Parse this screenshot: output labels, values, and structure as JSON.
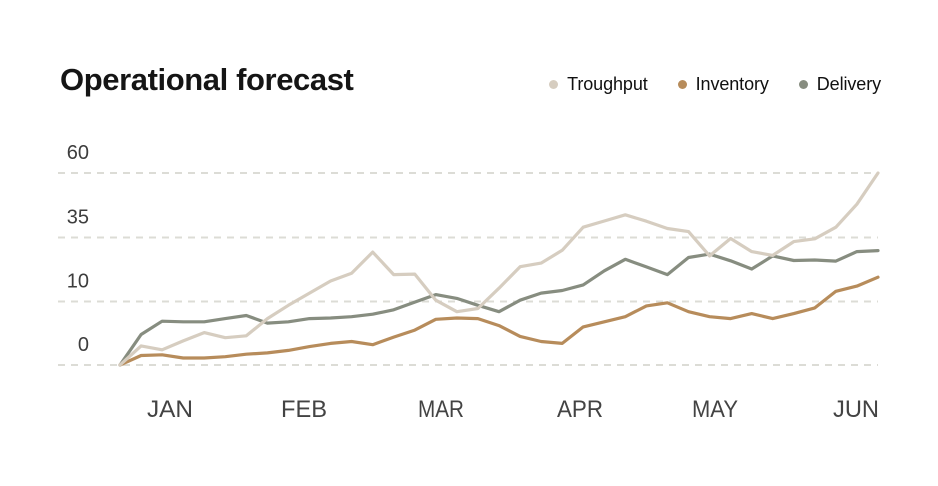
{
  "title": "Operational forecast",
  "legend": [
    {
      "label": "Troughput",
      "color": "#d6cdc0"
    },
    {
      "label": "Inventory",
      "color": "#b78c5b"
    },
    {
      "label": "Delivery",
      "color": "#878d80"
    }
  ],
  "colors": {
    "background": "#ffffff",
    "gridline": "#dcdcd6",
    "y_label": "#3d3d3d",
    "x_label": "#434343",
    "title": "#151515"
  },
  "chart_data": {
    "type": "line",
    "title": "Operational forecast",
    "x_categories": [
      "JAN",
      "FEB",
      "MAR",
      "APR",
      "MAY",
      "JUN"
    ],
    "y_ticks": [
      0,
      10,
      35,
      60
    ],
    "y_axis_note": "non-linear tick spacing, ticks equally spaced on screen",
    "grid": "horizontal-dashed",
    "legend_position": "top-right",
    "series": [
      {
        "name": "Troughput",
        "color": "#d6cdc0",
        "values": [
          0,
          3,
          2.4,
          3.8,
          5.1,
          4.3,
          4.6,
          7.3,
          9.4,
          13.3,
          18,
          21,
          29.3,
          20.5,
          20.7,
          10.5,
          8.4,
          8.9,
          15.2,
          23.6,
          25,
          30,
          39,
          41.4,
          43.8,
          41.3,
          38.5,
          37.3,
          27.8,
          34.6,
          29.5,
          28,
          33.4,
          34.5,
          39,
          47.9,
          60
        ]
      },
      {
        "name": "Inventory",
        "color": "#b78c5b",
        "values": [
          0,
          1.5,
          1.6,
          1.1,
          1.1,
          1.3,
          1.7,
          1.9,
          2.3,
          2.9,
          3.4,
          3.7,
          3.2,
          4.4,
          5.5,
          7.2,
          7.4,
          7.3,
          6.2,
          4.5,
          3.7,
          3.4,
          6,
          6.8,
          7.6,
          9.3,
          9.8,
          8.4,
          7.6,
          7.3,
          8.1,
          7.3,
          8.1,
          9,
          14,
          16,
          19.5
        ]
      },
      {
        "name": "Delivery",
        "color": "#878d80",
        "values": [
          0,
          4.8,
          6.9,
          6.8,
          6.8,
          7.3,
          7.8,
          6.6,
          6.8,
          7.3,
          7.4,
          7.6,
          8,
          8.7,
          9.9,
          12.7,
          11.2,
          9.4,
          8.4,
          10.5,
          13.3,
          14.3,
          16.5,
          22,
          26.5,
          23.5,
          20.5,
          27.2,
          28.5,
          25.9,
          22.7,
          27.8,
          26,
          26.2,
          25.8,
          29.5,
          29.9
        ]
      }
    ]
  }
}
